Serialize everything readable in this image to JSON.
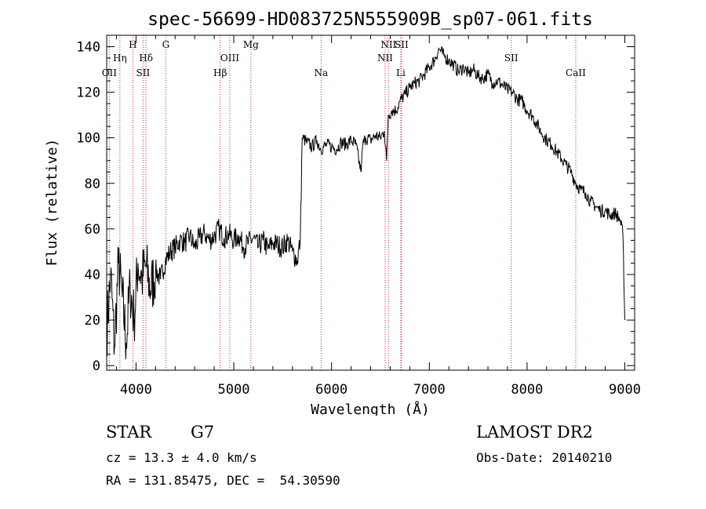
{
  "chart_data": {
    "type": "line",
    "title": "spec-56699-HD083725N555909B_sp07-061.fits",
    "xlabel": "Wavelength (Å)",
    "ylabel": "Flux (relative)",
    "xlim": [
      3700,
      9100
    ],
    "ylim": [
      -2,
      145
    ],
    "x_ticks": [
      4000,
      5000,
      6000,
      7000,
      8000,
      9000
    ],
    "y_ticks": [
      0,
      20,
      40,
      60,
      80,
      100,
      120,
      140
    ],
    "grid": false,
    "legend": "none",
    "series": [
      {
        "x": [
          3700,
          3740,
          3780,
          3820,
          3860,
          3900,
          3940,
          3980,
          4020,
          4060,
          4100,
          4150,
          4200,
          4250,
          4300,
          4350,
          4400,
          4450,
          4500,
          4550,
          4600,
          4650,
          4700,
          4750,
          4800,
          4850,
          4900,
          4950,
          5000,
          5050,
          5100,
          5150,
          5200,
          5250,
          5300,
          5350,
          5400,
          5450,
          5500,
          5550,
          5600,
          5650,
          5680,
          5700,
          5750,
          5800,
          5850,
          5890,
          5950,
          6000,
          6050,
          6100,
          6150,
          6200,
          6250,
          6300,
          6320,
          6350,
          6400,
          6450,
          6500,
          6540,
          6563,
          6580,
          6620,
          6660,
          6700,
          6750,
          6800,
          6850,
          6900,
          6950,
          7000,
          7050,
          7100,
          7150,
          7200,
          7250,
          7300,
          7350,
          7400,
          7450,
          7500,
          7550,
          7600,
          7650,
          7700,
          7750,
          7800,
          7850,
          7900,
          7950,
          8000,
          8050,
          8100,
          8150,
          8200,
          8250,
          8300,
          8350,
          8400,
          8450,
          8500,
          8550,
          8600,
          8650,
          8700,
          8750,
          8800,
          8850,
          8900,
          8950,
          8980,
          9000
        ],
        "y": [
          15,
          40,
          8,
          45,
          30,
          10,
          35,
          20,
          45,
          38,
          44,
          33,
          42,
          38,
          46,
          50,
          52,
          55,
          54,
          57,
          52,
          56,
          58,
          55,
          57,
          60,
          56,
          58,
          55,
          57,
          52,
          54,
          56,
          52,
          55,
          51,
          54,
          53,
          52,
          55,
          50,
          46,
          55,
          100,
          98,
          96,
          99,
          95,
          97,
          96,
          95,
          98,
          97,
          99,
          97,
          85,
          97,
          100,
          99,
          101,
          100,
          103,
          90,
          110,
          112,
          112,
          116,
          119,
          122,
          124,
          125,
          128,
          131,
          134,
          139,
          136,
          134,
          132,
          129,
          131,
          128,
          130,
          127,
          126,
          128,
          124,
          125,
          123,
          121,
          120,
          117,
          116,
          112,
          110,
          106,
          102,
          99,
          97,
          94,
          91,
          88,
          85,
          80,
          77,
          76,
          72,
          70,
          68,
          68,
          66,
          67,
          64,
          58,
          20
        ]
      }
    ],
    "line_markers": [
      {
        "label": "OII",
        "x": 3727,
        "row": 3
      },
      {
        "label": "Hη",
        "x": 3835,
        "row": 2
      },
      {
        "label": "H",
        "x": 3968,
        "row": 1
      },
      {
        "label": "SII",
        "x": 4072,
        "row": 3
      },
      {
        "label": "Hδ",
        "x": 4102,
        "row": 2
      },
      {
        "label": "G",
        "x": 4305,
        "row": 1
      },
      {
        "label": "Hβ",
        "x": 4861,
        "row": 3
      },
      {
        "label": "OIII",
        "x": 4959,
        "row": 2
      },
      {
        "label": "Mg",
        "x": 5175,
        "row": 1
      },
      {
        "label": "Na",
        "x": 5893,
        "row": 3
      },
      {
        "label": "NII",
        "x": 6548,
        "row": 2
      },
      {
        "label": "NII",
        "x": 6583,
        "row": 1
      },
      {
        "label": "Li",
        "x": 6708,
        "row": 3
      },
      {
        "label": "SII",
        "x": 6716,
        "row": 1
      },
      {
        "label": "SII",
        "x": 7838,
        "row": 2
      },
      {
        "label": "CaII",
        "x": 8498,
        "row": 3
      }
    ]
  },
  "info": {
    "class": "STAR",
    "subclass": "G7",
    "survey": "LAMOST DR2",
    "cz": "cz = 13.3 ± 4.0 km/s",
    "obs_date": "Obs-Date: 20140210",
    "radec": "RA = 131.85475, DEC =  54.30590"
  },
  "colors": {
    "spectrum": "#000000",
    "marker_lines": "#b03030",
    "axes": "#000000"
  }
}
